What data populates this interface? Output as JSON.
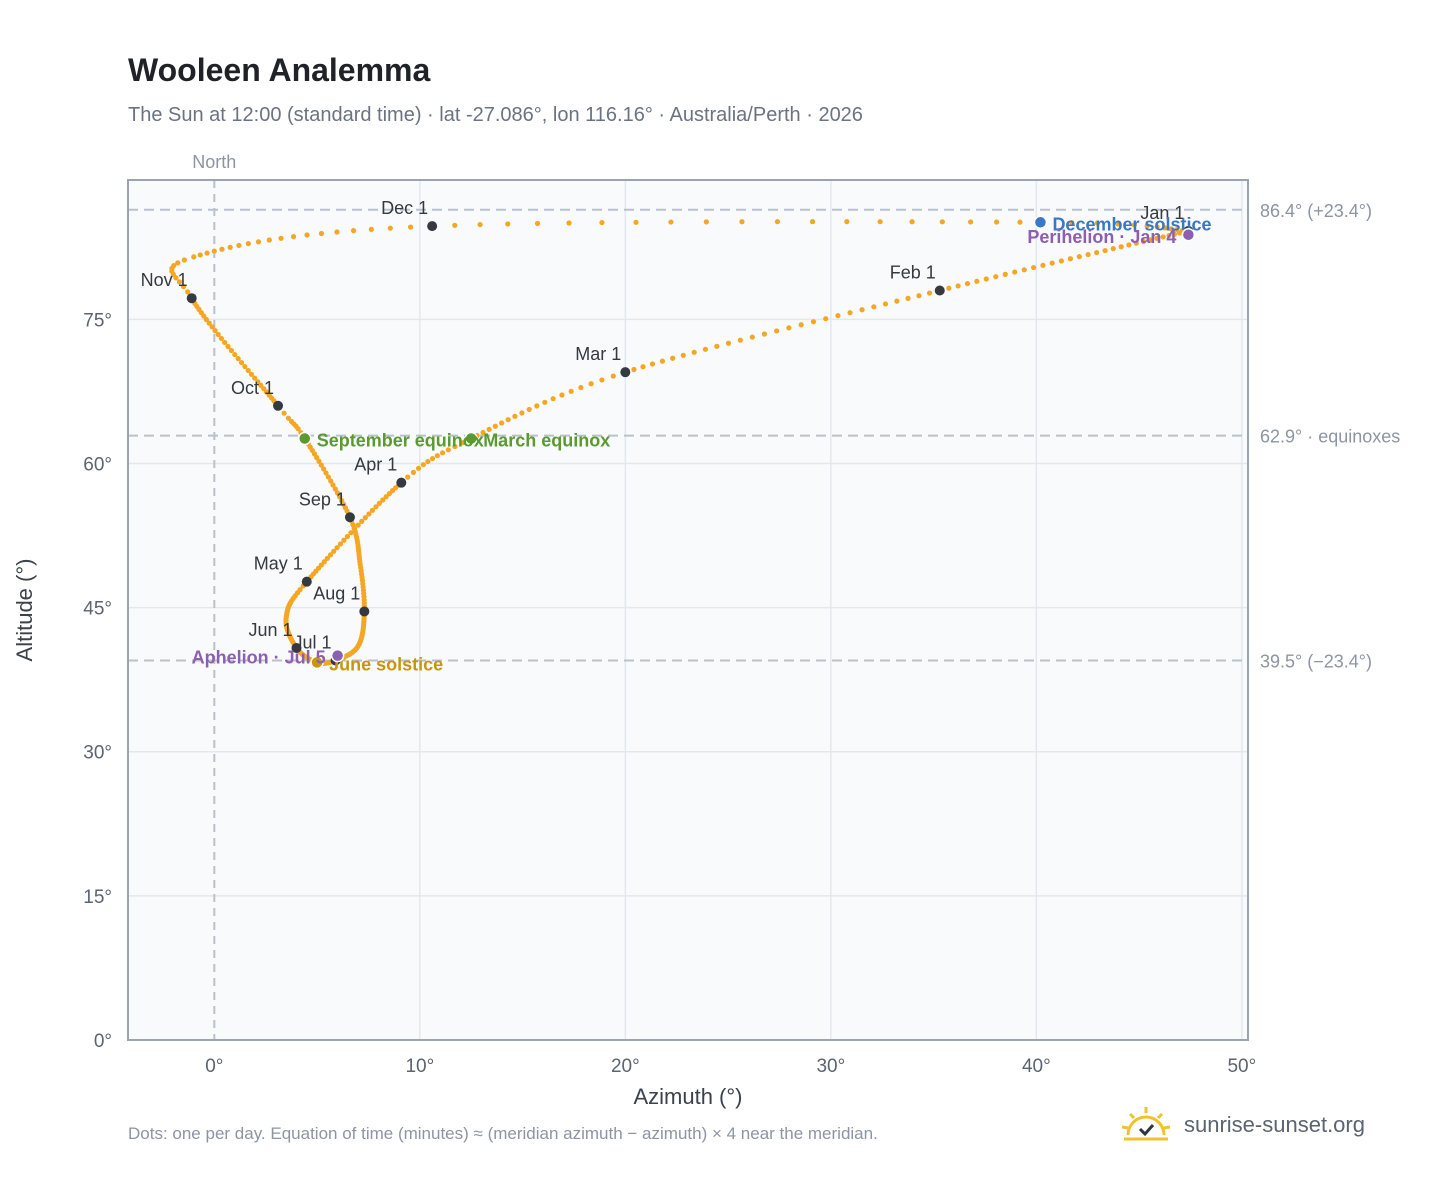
{
  "header": {
    "title": "Wooleen Analemma",
    "subtitle": "The Sun at 12:00 (standard time) · lat -27.086°, lon 116.16° · Australia/Perth · 2026"
  },
  "footer": {
    "note": "Dots: one per day. Equation of time (minutes) ≈ (meridian azimuth − azimuth) × 4 near the meridian.",
    "brand": "sunrise-sunset.org",
    "brand_icon": "sun-logo-icon"
  },
  "colors": {
    "path": "#f5a623",
    "month_marker": "#343a40",
    "equinox": "#5a9a2f",
    "december_solstice": "#3a78c3",
    "june_solstice": "#c8960a",
    "apsis": "#8c5fb0",
    "grid": "#e3e8ee",
    "plot_bg": "#f8fafc",
    "reference_line": "#b9c2cc"
  },
  "chart_data": {
    "type": "scatter",
    "title": "Wooleen Analemma",
    "xlabel": "Azimuth (°)",
    "ylabel": "Altitude (°)",
    "xlim": [
      -4.2,
      50.3
    ],
    "ylim": [
      0,
      89.5
    ],
    "x_ticks": [
      0,
      10,
      20,
      30,
      40,
      50
    ],
    "x_tick_labels": [
      "0°",
      "10°",
      "20°",
      "30°",
      "40°",
      "50°"
    ],
    "y_ticks": [
      0,
      15,
      30,
      45,
      60,
      75
    ],
    "y_tick_labels": [
      "0°",
      "15°",
      "30°",
      "45°",
      "60°",
      "75°"
    ],
    "grid": true,
    "meridian": {
      "azimuth": 0,
      "label": "North"
    },
    "reference_lines": [
      {
        "altitude": 86.4,
        "label": "86.4° (+23.4°)"
      },
      {
        "altitude": 62.9,
        "label": "62.9° · equinoxes"
      },
      {
        "altitude": 39.5,
        "label": "39.5° (−23.4°)"
      }
    ],
    "month_points": [
      {
        "label": "Jan 1",
        "az": 47.4,
        "alt": 84.2
      },
      {
        "label": "Feb 1",
        "az": 35.3,
        "alt": 78.0
      },
      {
        "label": "Mar 1",
        "az": 20.0,
        "alt": 69.5
      },
      {
        "label": "Apr 1",
        "az": 9.1,
        "alt": 58.0
      },
      {
        "label": "May 1",
        "az": 4.5,
        "alt": 47.7
      },
      {
        "label": "Jun 1",
        "az": 4.0,
        "alt": 40.8
      },
      {
        "label": "Jul 1",
        "az": 5.9,
        "alt": 39.5
      },
      {
        "label": "Aug 1",
        "az": 7.3,
        "alt": 44.6
      },
      {
        "label": "Sep 1",
        "az": 6.6,
        "alt": 54.4
      },
      {
        "label": "Oct 1",
        "az": 3.1,
        "alt": 66.0
      },
      {
        "label": "Nov 1",
        "az": -1.1,
        "alt": 77.2
      },
      {
        "label": "Dec 1",
        "az": 10.6,
        "alt": 84.7
      }
    ],
    "special_points": [
      {
        "label": "March equinox",
        "az": 12.5,
        "alt": 62.6,
        "kind": "equinox"
      },
      {
        "label": "September equinox",
        "az": 4.4,
        "alt": 62.6,
        "kind": "equinox"
      },
      {
        "label": "December solstice",
        "az": 40.2,
        "alt": 85.1,
        "kind": "december_solstice"
      },
      {
        "label": "June solstice",
        "az": 5.0,
        "alt": 39.3,
        "kind": "june_solstice"
      },
      {
        "label": "Perihelion · Jan 4",
        "az": 47.4,
        "alt": 83.8,
        "kind": "apsis"
      },
      {
        "label": "Aphelion · Jul 5",
        "az": 6.0,
        "alt": 40.0,
        "kind": "apsis"
      }
    ],
    "path_anchors": [
      {
        "day": 0,
        "az": 47.4,
        "alt": 84.2
      },
      {
        "day": 31,
        "az": 35.3,
        "alt": 78.0
      },
      {
        "day": 59,
        "az": 20.0,
        "alt": 69.5
      },
      {
        "day": 78,
        "az": 12.5,
        "alt": 62.6
      },
      {
        "day": 90,
        "az": 9.1,
        "alt": 58.0
      },
      {
        "day": 120,
        "az": 4.5,
        "alt": 47.7
      },
      {
        "day": 135,
        "az": 3.5,
        "alt": 44.0
      },
      {
        "day": 151,
        "az": 4.0,
        "alt": 40.8
      },
      {
        "day": 171,
        "az": 5.0,
        "alt": 39.3
      },
      {
        "day": 181,
        "az": 5.9,
        "alt": 39.5
      },
      {
        "day": 196,
        "az": 7.0,
        "alt": 41.0
      },
      {
        "day": 212,
        "az": 7.3,
        "alt": 44.6
      },
      {
        "day": 227,
        "az": 7.1,
        "alt": 49.5
      },
      {
        "day": 243,
        "az": 6.6,
        "alt": 54.4
      },
      {
        "day": 265,
        "az": 4.4,
        "alt": 62.6
      },
      {
        "day": 273,
        "az": 3.1,
        "alt": 66.0
      },
      {
        "day": 304,
        "az": -1.1,
        "alt": 77.2
      },
      {
        "day": 315,
        "az": -1.0,
        "alt": 81.5
      },
      {
        "day": 334,
        "az": 10.6,
        "alt": 84.7
      },
      {
        "day": 354,
        "az": 40.2,
        "alt": 85.1
      },
      {
        "day": 365,
        "az": 47.4,
        "alt": 84.2
      }
    ]
  }
}
